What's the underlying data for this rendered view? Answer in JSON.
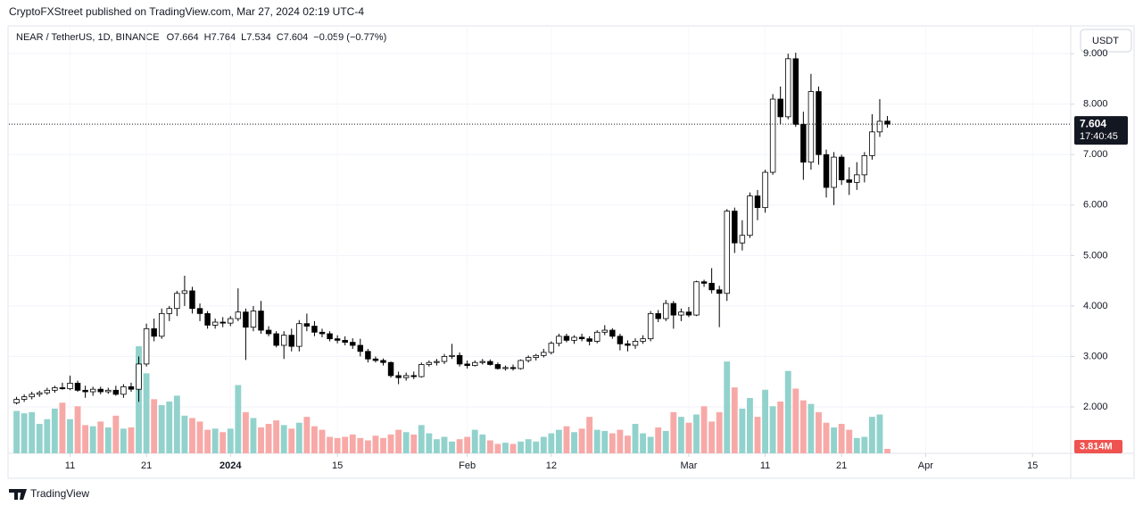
{
  "header": {
    "publisher": "CryptoFXStreet published on TradingView.com, Mar 27, 2024 02:19 UTC-4",
    "currency_button": "USDT",
    "footer": "TradingView"
  },
  "chart_data": {
    "type": "candlestick",
    "legend": [
      "NEAR / TetherUS, 1D, BINANCE",
      "O7.664",
      "H7.764",
      "L7.534",
      "C7.604",
      "−0.059 (−0.77%)"
    ],
    "x": [
      "2023-12-04",
      "2023-12-05",
      "2023-12-06",
      "2023-12-07",
      "2023-12-08",
      "2023-12-09",
      "2023-12-10",
      "2023-12-11",
      "2023-12-12",
      "2023-12-13",
      "2023-12-14",
      "2023-12-15",
      "2023-12-16",
      "2023-12-17",
      "2023-12-18",
      "2023-12-19",
      "2023-12-20",
      "2023-12-21",
      "2023-12-22",
      "2023-12-23",
      "2023-12-24",
      "2023-12-25",
      "2023-12-26",
      "2023-12-27",
      "2023-12-28",
      "2023-12-29",
      "2023-12-30",
      "2023-12-31",
      "2024-01-01",
      "2024-01-02",
      "2024-01-03",
      "2024-01-04",
      "2024-01-05",
      "2024-01-06",
      "2024-01-07",
      "2024-01-08",
      "2024-01-09",
      "2024-01-10",
      "2024-01-11",
      "2024-01-12",
      "2024-01-13",
      "2024-01-14",
      "2024-01-15",
      "2024-01-16",
      "2024-01-17",
      "2024-01-18",
      "2024-01-19",
      "2024-01-20",
      "2024-01-21",
      "2024-01-22",
      "2024-01-23",
      "2024-01-24",
      "2024-01-25",
      "2024-01-26",
      "2024-01-27",
      "2024-01-28",
      "2024-01-29",
      "2024-01-30",
      "2024-01-31",
      "2024-02-01",
      "2024-02-02",
      "2024-02-03",
      "2024-02-04",
      "2024-02-05",
      "2024-02-06",
      "2024-02-07",
      "2024-02-08",
      "2024-02-09",
      "2024-02-10",
      "2024-02-11",
      "2024-02-12",
      "2024-02-13",
      "2024-02-14",
      "2024-02-15",
      "2024-02-16",
      "2024-02-17",
      "2024-02-18",
      "2024-02-19",
      "2024-02-20",
      "2024-02-21",
      "2024-02-22",
      "2024-02-23",
      "2024-02-24",
      "2024-02-25",
      "2024-02-26",
      "2024-02-27",
      "2024-02-28",
      "2024-02-29",
      "2024-03-01",
      "2024-03-02",
      "2024-03-03",
      "2024-03-04",
      "2024-03-05",
      "2024-03-06",
      "2024-03-07",
      "2024-03-08",
      "2024-03-09",
      "2024-03-10",
      "2024-03-11",
      "2024-03-12",
      "2024-03-13",
      "2024-03-14",
      "2024-03-15",
      "2024-03-16",
      "2024-03-17",
      "2024-03-18",
      "2024-03-19",
      "2024-03-20",
      "2024-03-21",
      "2024-03-22",
      "2024-03-23",
      "2024-03-24",
      "2024-03-25",
      "2024-03-26",
      "2024-03-27"
    ],
    "open": [
      2.08,
      2.15,
      2.2,
      2.25,
      2.28,
      2.33,
      2.38,
      2.36,
      2.47,
      2.33,
      2.3,
      2.35,
      2.3,
      2.33,
      2.25,
      2.4,
      2.35,
      2.85,
      3.55,
      3.4,
      3.85,
      3.95,
      4.25,
      4.3,
      3.95,
      3.85,
      3.62,
      3.68,
      3.66,
      3.75,
      3.88,
      3.58,
      3.9,
      3.52,
      3.45,
      3.22,
      3.42,
      3.2,
      3.65,
      3.6,
      3.48,
      3.45,
      3.35,
      3.32,
      3.28,
      3.22,
      3.1,
      2.95,
      2.92,
      2.88,
      2.62,
      2.58,
      2.62,
      2.6,
      2.84,
      2.88,
      2.9,
      3.0,
      3.02,
      2.85,
      2.82,
      2.88,
      2.9,
      2.84,
      2.76,
      2.78,
      2.76,
      2.92,
      2.98,
      3.02,
      3.08,
      3.26,
      3.4,
      3.32,
      3.38,
      3.35,
      3.3,
      3.48,
      3.52,
      3.4,
      3.25,
      3.22,
      3.3,
      3.35,
      3.85,
      3.75,
      4.05,
      3.82,
      3.88,
      3.82,
      4.48,
      4.45,
      4.32,
      4.25,
      5.88,
      5.25,
      5.4,
      6.18,
      5.95,
      6.65,
      8.1,
      7.75,
      8.9,
      7.6,
      6.85,
      8.25,
      7.0,
      6.35,
      6.95,
      6.5,
      6.45,
      6.6,
      6.98,
      7.45,
      7.664
    ],
    "high": [
      2.2,
      2.25,
      2.3,
      2.32,
      2.38,
      2.42,
      2.48,
      2.62,
      2.52,
      2.42,
      2.4,
      2.4,
      2.38,
      2.42,
      2.45,
      2.48,
      3.0,
      3.65,
      3.75,
      3.95,
      4.0,
      4.3,
      4.6,
      4.38,
      4.05,
      3.9,
      3.75,
      3.78,
      3.8,
      4.35,
      3.95,
      4.0,
      4.1,
      3.6,
      3.5,
      3.5,
      3.55,
      3.72,
      3.85,
      3.7,
      3.55,
      3.5,
      3.42,
      3.4,
      3.36,
      3.35,
      3.15,
      3.0,
      2.96,
      2.9,
      2.7,
      2.68,
      2.7,
      2.88,
      2.92,
      2.95,
      3.05,
      3.25,
      3.08,
      2.92,
      2.92,
      2.95,
      2.94,
      2.88,
      2.82,
      2.84,
      2.94,
      3.02,
      3.05,
      3.15,
      3.3,
      3.45,
      3.45,
      3.42,
      3.45,
      3.4,
      3.52,
      3.62,
      3.56,
      3.45,
      3.32,
      3.36,
      3.42,
      3.9,
      3.92,
      4.12,
      4.1,
      3.95,
      3.98,
      4.5,
      4.52,
      4.75,
      4.4,
      5.92,
      5.95,
      5.7,
      6.25,
      6.3,
      6.7,
      8.2,
      8.35,
      9.0,
      9.02,
      7.85,
      8.6,
      8.35,
      7.1,
      7.05,
      7.0,
      6.75,
      6.85,
      7.05,
      7.8,
      8.1,
      7.764
    ],
    "low": [
      2.05,
      2.1,
      2.15,
      2.2,
      2.24,
      2.28,
      2.34,
      2.33,
      2.3,
      2.18,
      2.22,
      2.25,
      2.26,
      2.22,
      2.18,
      2.3,
      2.1,
      2.8,
      3.3,
      3.35,
      3.7,
      3.8,
      4.0,
      3.85,
      3.7,
      3.55,
      3.55,
      3.58,
      3.6,
      3.7,
      2.93,
      3.5,
      3.45,
      3.4,
      3.18,
      2.95,
      3.1,
      3.1,
      3.5,
      3.4,
      3.38,
      3.3,
      3.26,
      3.22,
      3.15,
      3.0,
      2.88,
      2.88,
      2.82,
      2.58,
      2.45,
      2.52,
      2.55,
      2.58,
      2.8,
      2.82,
      2.85,
      2.95,
      2.8,
      2.76,
      2.8,
      2.84,
      2.82,
      2.74,
      2.72,
      2.72,
      2.74,
      2.88,
      2.92,
      2.98,
      3.04,
      3.2,
      3.28,
      3.25,
      3.3,
      3.22,
      3.26,
      3.42,
      3.35,
      3.12,
      3.1,
      3.15,
      3.25,
      3.3,
      3.68,
      3.7,
      3.55,
      3.7,
      3.78,
      3.8,
      4.38,
      4.25,
      3.58,
      4.1,
      5.05,
      5.1,
      5.35,
      5.7,
      5.85,
      6.6,
      7.6,
      7.7,
      7.55,
      6.5,
      6.7,
      6.8,
      6.15,
      6.0,
      6.4,
      6.2,
      6.3,
      6.45,
      6.9,
      7.35,
      7.534
    ],
    "close": [
      2.15,
      2.2,
      2.25,
      2.28,
      2.33,
      2.38,
      2.36,
      2.47,
      2.33,
      2.3,
      2.35,
      2.3,
      2.33,
      2.25,
      2.4,
      2.35,
      2.85,
      3.55,
      3.4,
      3.85,
      3.95,
      4.25,
      4.3,
      3.95,
      3.85,
      3.62,
      3.68,
      3.66,
      3.75,
      3.88,
      3.58,
      3.9,
      3.52,
      3.45,
      3.22,
      3.42,
      3.2,
      3.65,
      3.6,
      3.48,
      3.45,
      3.35,
      3.32,
      3.28,
      3.22,
      3.1,
      2.95,
      2.92,
      2.88,
      2.62,
      2.58,
      2.62,
      2.6,
      2.84,
      2.88,
      2.9,
      3.0,
      3.02,
      2.85,
      2.82,
      2.88,
      2.9,
      2.84,
      2.76,
      2.78,
      2.76,
      2.92,
      2.98,
      3.02,
      3.08,
      3.26,
      3.4,
      3.32,
      3.38,
      3.35,
      3.3,
      3.48,
      3.52,
      3.4,
      3.25,
      3.22,
      3.3,
      3.35,
      3.85,
      3.75,
      4.05,
      3.82,
      3.88,
      3.82,
      4.48,
      4.45,
      4.32,
      4.25,
      5.88,
      5.25,
      5.4,
      6.18,
      5.95,
      6.65,
      8.1,
      7.75,
      8.9,
      7.6,
      6.85,
      8.25,
      7.0,
      6.35,
      6.95,
      6.5,
      6.45,
      6.6,
      6.98,
      7.45,
      7.66,
      7.604
    ],
    "volume": [
      36,
      34,
      35,
      25,
      29,
      38,
      43,
      29,
      40,
      24,
      23,
      27,
      22,
      32,
      21,
      22,
      91,
      68,
      46,
      41,
      44,
      49,
      32,
      30,
      27,
      20,
      21,
      18,
      21,
      58,
      35,
      30,
      22,
      25,
      28,
      24,
      21,
      26,
      31,
      23,
      20,
      14,
      13,
      14,
      16,
      13,
      11,
      15,
      13,
      16,
      20,
      18,
      16,
      24,
      17,
      12,
      14,
      10,
      12,
      14,
      20,
      16,
      11,
      8,
      9,
      8,
      10,
      12,
      10,
      14,
      17,
      20,
      23,
      18,
      21,
      31,
      20,
      19,
      17,
      20,
      15,
      25,
      17,
      14,
      22,
      19,
      35,
      31,
      26,
      33,
      40,
      27,
      35,
      78,
      56,
      38,
      47,
      31,
      54,
      40,
      44,
      70,
      55,
      45,
      42,
      35,
      26,
      22,
      25,
      20,
      13,
      14,
      31,
      33,
      3.814
    ],
    "volume_labels": [
      null,
      null,
      null,
      null,
      null,
      null,
      null,
      null,
      null,
      null,
      null,
      null,
      null,
      null,
      null,
      null,
      null,
      null,
      null,
      null,
      null,
      null,
      null,
      null,
      null,
      null,
      null,
      null,
      null,
      null,
      null,
      null,
      null,
      null,
      null,
      null,
      null,
      null,
      null,
      null,
      null,
      null,
      null,
      null,
      null,
      null,
      null,
      null,
      null,
      null,
      null,
      null,
      null,
      null,
      null,
      null,
      null,
      null,
      null,
      null,
      null,
      null,
      null,
      null,
      null,
      null,
      null,
      null,
      null,
      null,
      null,
      null,
      null,
      null,
      null,
      null,
      null,
      null,
      null,
      null,
      null,
      null,
      null,
      null,
      null,
      null,
      null,
      null,
      null,
      null,
      null,
      null,
      null,
      null,
      null,
      null,
      null,
      null,
      null,
      null,
      null,
      null,
      null,
      null,
      null,
      null,
      null,
      null,
      null,
      null,
      null,
      null,
      null,
      null,
      "3.814M"
    ],
    "countdown": "17:40:45",
    "xlim": [
      "2023-12-03",
      "2024-04-20"
    ],
    "xticks": [
      {
        "value": "2023-12-11",
        "label": "11"
      },
      {
        "value": "2023-12-21",
        "label": "21"
      },
      {
        "value": "2024-01-01",
        "label": "2024"
      },
      {
        "value": "2024-01-15",
        "label": "15"
      },
      {
        "value": "2024-02-01",
        "label": "Feb"
      },
      {
        "value": "2024-02-12",
        "label": "12"
      },
      {
        "value": "2024-03-01",
        "label": "Mar"
      },
      {
        "value": "2024-03-11",
        "label": "11"
      },
      {
        "value": "2024-03-21",
        "label": "21"
      },
      {
        "value": "2024-04-01",
        "label": "Apr"
      },
      {
        "value": "2024-04-15",
        "label": "15"
      }
    ],
    "ylim": [
      1.08,
      9.18
    ],
    "yticks": [
      {
        "value": 2,
        "label": "2.000"
      },
      {
        "value": 3,
        "label": "3.000"
      },
      {
        "value": 4,
        "label": "4.000"
      },
      {
        "value": 5,
        "label": "5.000"
      },
      {
        "value": 6,
        "label": "6.000"
      },
      {
        "value": 7,
        "label": "7.000"
      },
      {
        "value": 8,
        "label": "8.000"
      },
      {
        "value": 9,
        "label": "9.000"
      }
    ],
    "grid": true,
    "up_color": "#ffffff",
    "down_color": "#000000",
    "wick_color": "#000000",
    "volume_up_color": "#92d2cc",
    "volume_down_color": "#f7a9a7",
    "last_price_color": "#131722",
    "volume_label_color": "#ef5350"
  }
}
